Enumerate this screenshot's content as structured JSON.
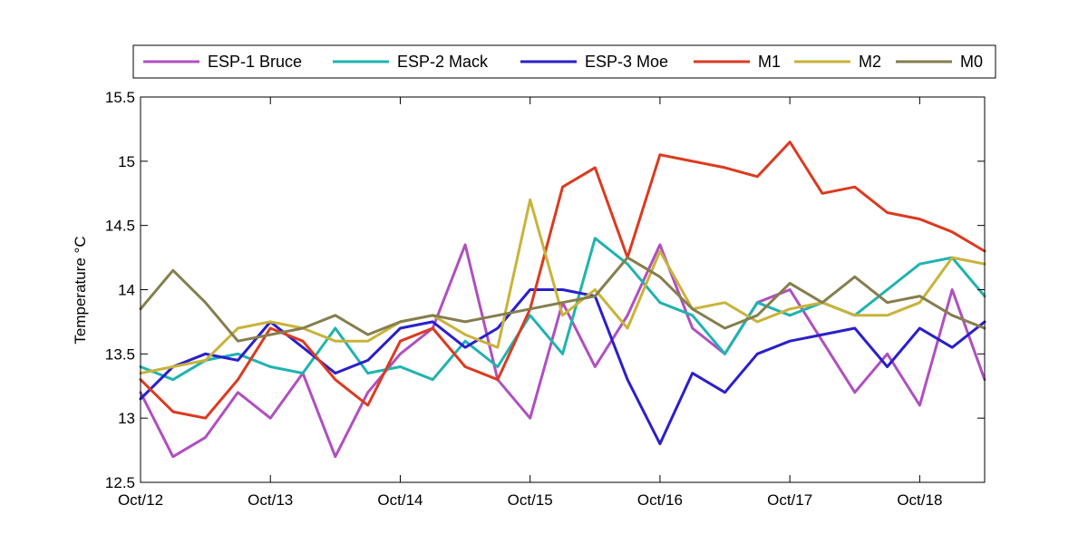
{
  "chart_data": {
    "type": "line",
    "title": "",
    "xlabel": "",
    "ylabel": "Temperature °C",
    "xlim": [
      "2012-10-12",
      "2012-10-18 12:00"
    ],
    "ylim": [
      12.5,
      15.5
    ],
    "x_tick_labels": [
      "Oct/12",
      "Oct/13",
      "Oct/14",
      "Oct/15",
      "Oct/16",
      "Oct/17",
      "Oct/18"
    ],
    "y_ticks": [
      12.5,
      13,
      13.5,
      14,
      14.5,
      15,
      15.5
    ],
    "y_tick_labels": [
      "12.5",
      "13",
      "13.5",
      "14",
      "14.5",
      "15",
      "15.5"
    ],
    "grid": false,
    "legend_position": "top, outside, horizontal",
    "x": [
      "Oct/12 00:00",
      "Oct/12 06:00",
      "Oct/12 12:00",
      "Oct/12 18:00",
      "Oct/13 00:00",
      "Oct/13 06:00",
      "Oct/13 12:00",
      "Oct/13 18:00",
      "Oct/14 00:00",
      "Oct/14 06:00",
      "Oct/14 12:00",
      "Oct/14 18:00",
      "Oct/15 00:00",
      "Oct/15 06:00",
      "Oct/15 12:00",
      "Oct/15 18:00",
      "Oct/16 00:00",
      "Oct/16 06:00",
      "Oct/16 12:00",
      "Oct/16 18:00",
      "Oct/17 00:00",
      "Oct/17 06:00",
      "Oct/17 12:00",
      "Oct/17 18:00",
      "Oct/18 00:00",
      "Oct/18 06:00",
      "Oct/18 12:00"
    ],
    "series": [
      {
        "name": "ESP-1 Bruce",
        "color": "#B04FC0",
        "values": [
          13.2,
          12.7,
          12.85,
          13.2,
          13.0,
          13.35,
          12.7,
          13.2,
          13.5,
          13.7,
          14.35,
          13.3,
          13.0,
          13.9,
          13.4,
          13.8,
          14.35,
          13.7,
          13.5,
          13.9,
          14.0,
          13.6,
          13.2,
          13.5,
          13.1,
          14.0,
          13.3
        ]
      },
      {
        "name": "ESP-2 Mack",
        "color": "#1FB3B0",
        "values": [
          13.4,
          13.3,
          13.45,
          13.5,
          13.4,
          13.35,
          13.7,
          13.35,
          13.4,
          13.3,
          13.6,
          13.4,
          13.8,
          13.5,
          14.4,
          14.2,
          13.9,
          13.8,
          13.5,
          13.9,
          13.8,
          13.9,
          13.8,
          14.0,
          14.2,
          14.25,
          13.95
        ]
      },
      {
        "name": "ESP-3 Moe",
        "color": "#2A1FCB",
        "values": [
          13.15,
          13.4,
          13.5,
          13.45,
          13.75,
          13.55,
          13.35,
          13.45,
          13.7,
          13.75,
          13.55,
          13.7,
          14.0,
          14.0,
          13.95,
          13.3,
          12.8,
          13.35,
          13.2,
          13.5,
          13.6,
          13.65,
          13.7,
          13.4,
          13.7,
          13.55,
          13.75
        ]
      },
      {
        "name": "M1",
        "color": "#DC3A20",
        "values": [
          13.3,
          13.05,
          13.0,
          13.3,
          13.7,
          13.6,
          13.3,
          13.1,
          13.6,
          13.7,
          13.4,
          13.3,
          13.85,
          14.8,
          14.95,
          14.25,
          15.05,
          15.0,
          14.95,
          14.88,
          15.15,
          14.75,
          14.8,
          14.6,
          14.55,
          14.45,
          14.3
        ]
      },
      {
        "name": "M2",
        "color": "#C9B33A",
        "values": [
          13.35,
          13.4,
          13.45,
          13.7,
          13.75,
          13.7,
          13.6,
          13.6,
          13.75,
          13.8,
          13.65,
          13.55,
          14.7,
          13.8,
          14.0,
          13.7,
          14.3,
          13.85,
          13.9,
          13.75,
          13.85,
          13.9,
          13.8,
          13.8,
          13.9,
          14.25,
          14.2
        ]
      },
      {
        "name": "M0",
        "color": "#857E4E",
        "values": [
          13.85,
          14.15,
          13.9,
          13.6,
          13.65,
          13.7,
          13.8,
          13.65,
          13.75,
          13.8,
          13.75,
          13.8,
          13.85,
          13.9,
          13.95,
          14.25,
          14.1,
          13.85,
          13.7,
          13.8,
          14.05,
          13.9,
          14.1,
          13.9,
          13.95,
          13.8,
          13.7
        ]
      }
    ]
  }
}
